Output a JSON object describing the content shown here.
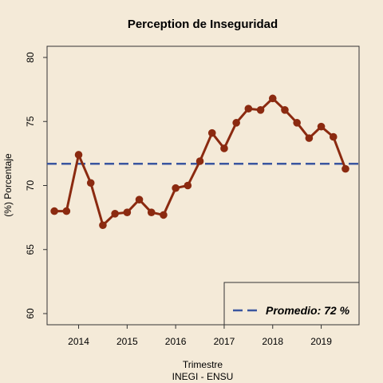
{
  "chart_data": {
    "type": "line",
    "title": "Perception de Inseguridad",
    "xlabel": "Trimestre",
    "caption": "INEGI - ENSU",
    "ylabel": "(%) Porcentaje",
    "ylim": [
      60,
      80
    ],
    "yticks": [
      60,
      65,
      70,
      75,
      80
    ],
    "xlim": [
      2013.35,
      2019.78
    ],
    "xticks": [
      2014,
      2015,
      2016,
      2017,
      2018,
      2019
    ],
    "grid": false,
    "series": [
      {
        "x": [
          2013.5,
          2013.75,
          2014.0,
          2014.25,
          2014.5,
          2014.75,
          2015.0,
          2015.25,
          2015.5,
          2015.75,
          2016.0,
          2016.25,
          2016.5,
          2016.75,
          2017.0,
          2017.25,
          2017.5,
          2017.75,
          2018.0,
          2018.25,
          2018.5,
          2018.75,
          2019.0,
          2019.25,
          2019.5
        ],
        "values": [
          68.0,
          68.0,
          72.4,
          70.2,
          66.9,
          67.8,
          67.9,
          68.9,
          67.9,
          67.7,
          69.8,
          70.0,
          71.9,
          74.1,
          72.9,
          74.9,
          76.0,
          75.9,
          76.8,
          75.9,
          74.9,
          73.7,
          74.6,
          73.8,
          71.3
        ],
        "color": "#8b2a10"
      }
    ],
    "reference_line": {
      "value": 71.7,
      "color": "#3a56a0",
      "style": "dashed"
    },
    "legend": {
      "label": "Promedio: 72 %",
      "position": "bottom-right"
    }
  }
}
